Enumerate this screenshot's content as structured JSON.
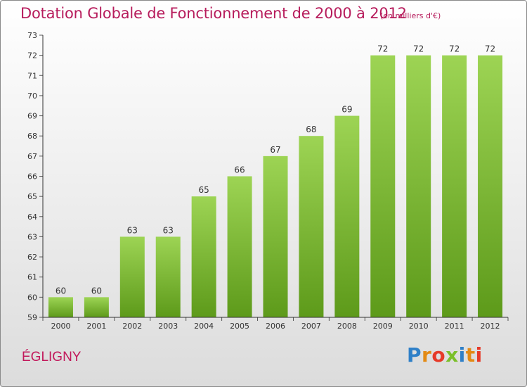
{
  "header": {
    "title": "Dotation Globale de Fonctionnement de 2000 à 2012",
    "unit": "(en milliers d'€)"
  },
  "footer": {
    "city": "ÉGLIGNY",
    "logo": "Proxiti"
  },
  "colors": {
    "title": "#b71c5c",
    "bar_top": "#9dd454",
    "bar_bottom": "#5d9a1a",
    "axis": "#333333"
  },
  "chart_data": {
    "type": "bar",
    "categories": [
      "2000",
      "2001",
      "2002",
      "2003",
      "2004",
      "2005",
      "2006",
      "2007",
      "2008",
      "2009",
      "2010",
      "2011",
      "2012"
    ],
    "values": [
      60,
      60,
      63,
      63,
      65,
      66,
      67,
      68,
      69,
      72,
      72,
      72,
      72
    ],
    "ylim": [
      59,
      73
    ],
    "yticks": [
      59,
      60,
      61,
      62,
      63,
      64,
      65,
      66,
      67,
      68,
      69,
      70,
      71,
      72,
      73
    ],
    "data_labels": true,
    "grid": false
  }
}
